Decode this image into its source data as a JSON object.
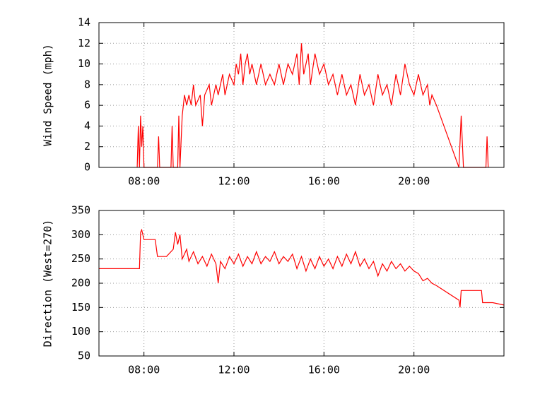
{
  "chart_data": [
    {
      "type": "line",
      "ylabel": "Wind Speed (mph)",
      "color": "#ff0000",
      "grid": true,
      "xlim": [
        6,
        24
      ],
      "xticks": [
        {
          "value": 8,
          "label": "08:00"
        },
        {
          "value": 12,
          "label": "12:00"
        },
        {
          "value": 16,
          "label": "16:00"
        },
        {
          "value": 20,
          "label": "20:00"
        }
      ],
      "ylim": [
        0,
        14
      ],
      "yticks": [
        0,
        2,
        4,
        6,
        8,
        10,
        12,
        14
      ],
      "x": [
        7.7,
        7.75,
        7.8,
        7.85,
        7.9,
        7.95,
        8.0,
        8.6,
        8.65,
        8.7,
        9.2,
        9.25,
        9.3,
        9.5,
        9.55,
        9.6,
        9.7,
        9.8,
        9.9,
        10.0,
        10.1,
        10.2,
        10.3,
        10.5,
        10.6,
        10.7,
        10.9,
        11.0,
        11.2,
        11.3,
        11.5,
        11.6,
        11.8,
        12.0,
        12.1,
        12.2,
        12.3,
        12.4,
        12.5,
        12.6,
        12.7,
        12.8,
        13.0,
        13.2,
        13.4,
        13.6,
        13.8,
        14.0,
        14.2,
        14.4,
        14.6,
        14.8,
        14.9,
        15.0,
        15.1,
        15.3,
        15.4,
        15.6,
        15.8,
        16.0,
        16.2,
        16.4,
        16.6,
        16.8,
        17.0,
        17.2,
        17.4,
        17.6,
        17.8,
        18.0,
        18.2,
        18.4,
        18.6,
        18.8,
        19.0,
        19.2,
        19.4,
        19.6,
        19.8,
        20.0,
        20.2,
        20.4,
        20.6,
        20.7,
        20.8,
        21.0,
        22.0,
        22.1,
        22.2,
        23.2,
        23.25,
        23.3
      ],
      "values": [
        0,
        4,
        0,
        5,
        2,
        4,
        0,
        0,
        3,
        0,
        0,
        4,
        0,
        0,
        5,
        0,
        5,
        7,
        6,
        7,
        6,
        8,
        6,
        7,
        4,
        7,
        8,
        6,
        8,
        7,
        9,
        7,
        9,
        8,
        10,
        9,
        11,
        8,
        10,
        11,
        9,
        10,
        8,
        10,
        8,
        9,
        8,
        10,
        8,
        10,
        9,
        11,
        8,
        12,
        9,
        11,
        8,
        11,
        9,
        10,
        8,
        9,
        7,
        9,
        7,
        8,
        6,
        9,
        7,
        8,
        6,
        9,
        7,
        8,
        6,
        9,
        7,
        10,
        8,
        7,
        9,
        7,
        8,
        6,
        7,
        6,
        0,
        5,
        0,
        0,
        3,
        0
      ]
    },
    {
      "type": "line",
      "ylabel": "Direction (West=270)",
      "color": "#ff0000",
      "grid": true,
      "xlim": [
        6,
        24
      ],
      "xticks": [
        {
          "value": 8,
          "label": "08:00"
        },
        {
          "value": 12,
          "label": "12:00"
        },
        {
          "value": 16,
          "label": "16:00"
        },
        {
          "value": 20,
          "label": "20:00"
        }
      ],
      "ylim": [
        50,
        350
      ],
      "yticks": [
        50,
        100,
        150,
        200,
        250,
        300,
        350
      ],
      "x": [
        6,
        7.8,
        7.85,
        7.9,
        8.0,
        8.5,
        8.6,
        9.0,
        9.3,
        9.4,
        9.5,
        9.6,
        9.7,
        9.9,
        10.0,
        10.2,
        10.4,
        10.6,
        10.8,
        11.0,
        11.2,
        11.3,
        11.4,
        11.6,
        11.8,
        12.0,
        12.2,
        12.4,
        12.6,
        12.8,
        13.0,
        13.2,
        13.4,
        13.6,
        13.8,
        14.0,
        14.2,
        14.4,
        14.6,
        14.8,
        15.0,
        15.2,
        15.4,
        15.6,
        15.8,
        16.0,
        16.2,
        16.4,
        16.6,
        16.8,
        17.0,
        17.2,
        17.4,
        17.6,
        17.8,
        18.0,
        18.2,
        18.4,
        18.6,
        18.8,
        19.0,
        19.2,
        19.4,
        19.6,
        19.8,
        20.0,
        20.2,
        20.4,
        20.6,
        20.8,
        21.0,
        22.0,
        22.05,
        22.1,
        23.0,
        23.05,
        23.5,
        24
      ],
      "values": [
        230,
        230,
        305,
        310,
        290,
        290,
        255,
        255,
        270,
        305,
        280,
        300,
        250,
        270,
        245,
        265,
        240,
        255,
        235,
        260,
        240,
        200,
        245,
        230,
        255,
        240,
        260,
        235,
        255,
        240,
        265,
        240,
        255,
        245,
        265,
        240,
        255,
        245,
        260,
        230,
        255,
        225,
        250,
        230,
        255,
        235,
        250,
        230,
        255,
        235,
        260,
        240,
        265,
        235,
        250,
        230,
        245,
        215,
        240,
        225,
        245,
        230,
        240,
        225,
        235,
        225,
        220,
        205,
        210,
        200,
        195,
        165,
        150,
        185,
        185,
        160,
        160,
        155
      ]
    }
  ]
}
